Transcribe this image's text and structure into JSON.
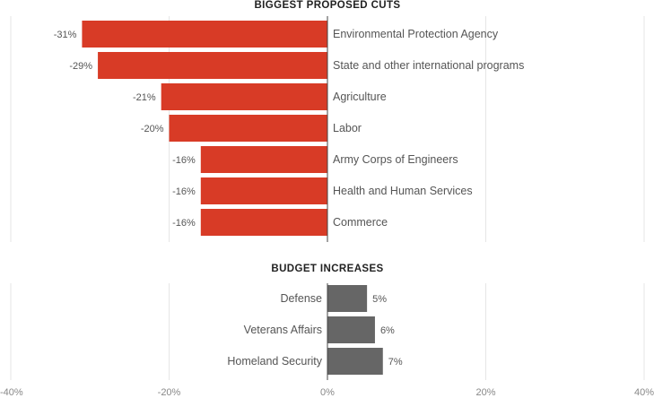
{
  "chart_data": [
    {
      "type": "bar",
      "orientation": "horizontal",
      "title": "BIGGEST PROPOSED CUTS",
      "categories": [
        "Environmental Protection Agency",
        "State and other international programs",
        "Agriculture",
        "Labor",
        "Army Corps of Engineers",
        "Health and Human Services",
        "Commerce"
      ],
      "values": [
        -31,
        -29,
        -21,
        -20,
        -16,
        -16,
        -16
      ],
      "value_labels": [
        "-31%",
        "-29%",
        "-21%",
        "-20%",
        "-16%",
        "-16%",
        "-16%"
      ],
      "bar_color": "#d83b26",
      "xlim": [
        -40,
        40
      ],
      "grid": true
    },
    {
      "type": "bar",
      "orientation": "horizontal",
      "title": "BUDGET INCREASES",
      "categories": [
        "Defense",
        "Veterans Affairs",
        "Homeland Security"
      ],
      "values": [
        5,
        6,
        7
      ],
      "value_labels": [
        "5%",
        "6%",
        "7%"
      ],
      "bar_color": "#666666",
      "xlim": [
        -40,
        40
      ],
      "grid": true
    }
  ],
  "x_axis": {
    "ticks": [
      -40,
      -20,
      0,
      20,
      40
    ],
    "tick_labels": [
      "-40%",
      "-20%",
      "0%",
      "20%",
      "40%"
    ]
  }
}
